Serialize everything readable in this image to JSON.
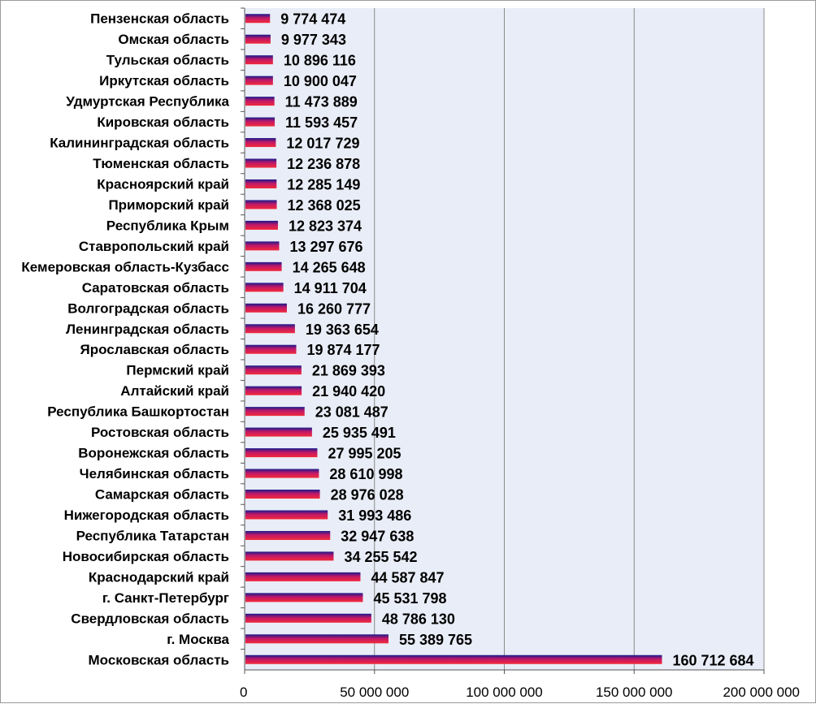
{
  "chart_data": {
    "type": "bar",
    "orientation": "horizontal",
    "title": "",
    "xlabel": "",
    "ylabel": "",
    "xlim": [
      0,
      200000000
    ],
    "grid": true,
    "legend": "none",
    "colors": {
      "plot_bg": "#e9edf7",
      "grid": "#8a8a8a",
      "bar_top": "#1a1a8c",
      "bar_mid": "#d01a5e",
      "bar_bottom": "#f02b3b"
    },
    "tick_labels": [
      "0",
      "50 000 000",
      "100 000 000",
      "150 000 000",
      "200 000 000"
    ],
    "tick_values": [
      0,
      50000000,
      100000000,
      150000000,
      200000000
    ],
    "categories": [
      "Пензенская область",
      "Омская область",
      "Тульская область",
      "Иркутская область",
      "Удмуртская Республика",
      "Кировская область",
      "Калининградская область",
      "Тюменская область",
      "Красноярский край",
      "Приморский край",
      "Республика Крым",
      "Ставропольский край",
      "Кемеровская область-Кузбасс",
      "Саратовская область",
      "Волгоградская область",
      "Ленинградская область",
      "Ярославская область",
      "Пермский край",
      "Алтайский край",
      "Республика Башкортостан",
      "Ростовская область",
      "Воронежская область",
      "Челябинская область",
      "Самарская область",
      "Нижегородская область",
      "Республика Татарстан",
      "Новосибирская область",
      "Краснодарский край",
      "г. Санкт-Петербург",
      "Свердловская область",
      "г. Москва",
      "Московская область"
    ],
    "values": [
      9774474,
      9977343,
      10896116,
      10900047,
      11473889,
      11593457,
      12017729,
      12236878,
      12285149,
      12368025,
      12823374,
      13297676,
      14265648,
      14911704,
      16260777,
      19363654,
      19874177,
      21869393,
      21940420,
      23081487,
      25935491,
      27995205,
      28610998,
      28976028,
      31993486,
      32947638,
      34255542,
      44587847,
      45531798,
      48786130,
      55389765,
      160712684
    ],
    "value_labels": [
      "9 774 474",
      "9 977 343",
      "10 896 116",
      "10 900 047",
      "11 473 889",
      "11 593 457",
      "12 017 729",
      "12 236 878",
      "12 285 149",
      "12 368 025",
      "12 823 374",
      "13 297 676",
      "14 265 648",
      "14 911 704",
      "16 260 777",
      "19 363 654",
      "19 874 177",
      "21 869 393",
      "21 940 420",
      "23 081 487",
      "25 935 491",
      "27 995 205",
      "28 610 998",
      "28 976 028",
      "31 993 486",
      "32 947 638",
      "34 255 542",
      "44 587 847",
      "45 531 798",
      "48 786 130",
      "55 389 765",
      "160 712 684"
    ]
  }
}
